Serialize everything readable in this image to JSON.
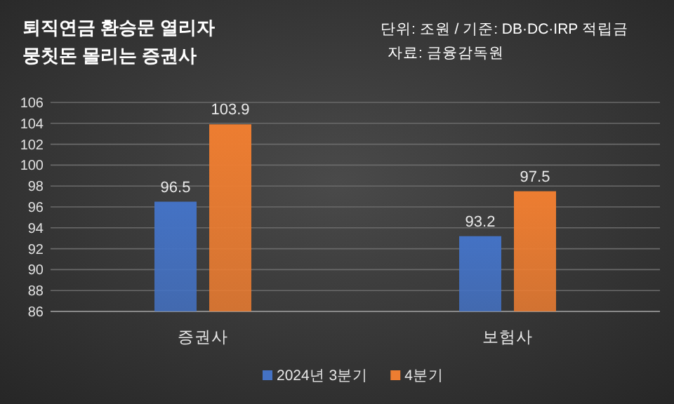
{
  "chart_data": {
    "type": "bar",
    "title": "퇴직연금  환승문  열리자",
    "subtitle": "뭉칫돈  몰리는  증권사",
    "annotations": [
      "단위: 조원 / 기준: DB·DC·IRP 적립금",
      "자료: 금융감독원"
    ],
    "categories": [
      "증권사",
      "보험사"
    ],
    "series": [
      {
        "name": "2024년 3분기",
        "color": "#4472c4",
        "values": [
          96.5,
          93.2
        ]
      },
      {
        "name": "4분기",
        "color": "#ed7d31",
        "values": [
          103.9,
          97.5
        ]
      }
    ],
    "ylim": [
      86,
      106
    ],
    "yticks": [
      86,
      88,
      90,
      92,
      94,
      96,
      98,
      100,
      102,
      104,
      106
    ],
    "grid": "y",
    "legend": "bottom",
    "data_labels": true
  }
}
